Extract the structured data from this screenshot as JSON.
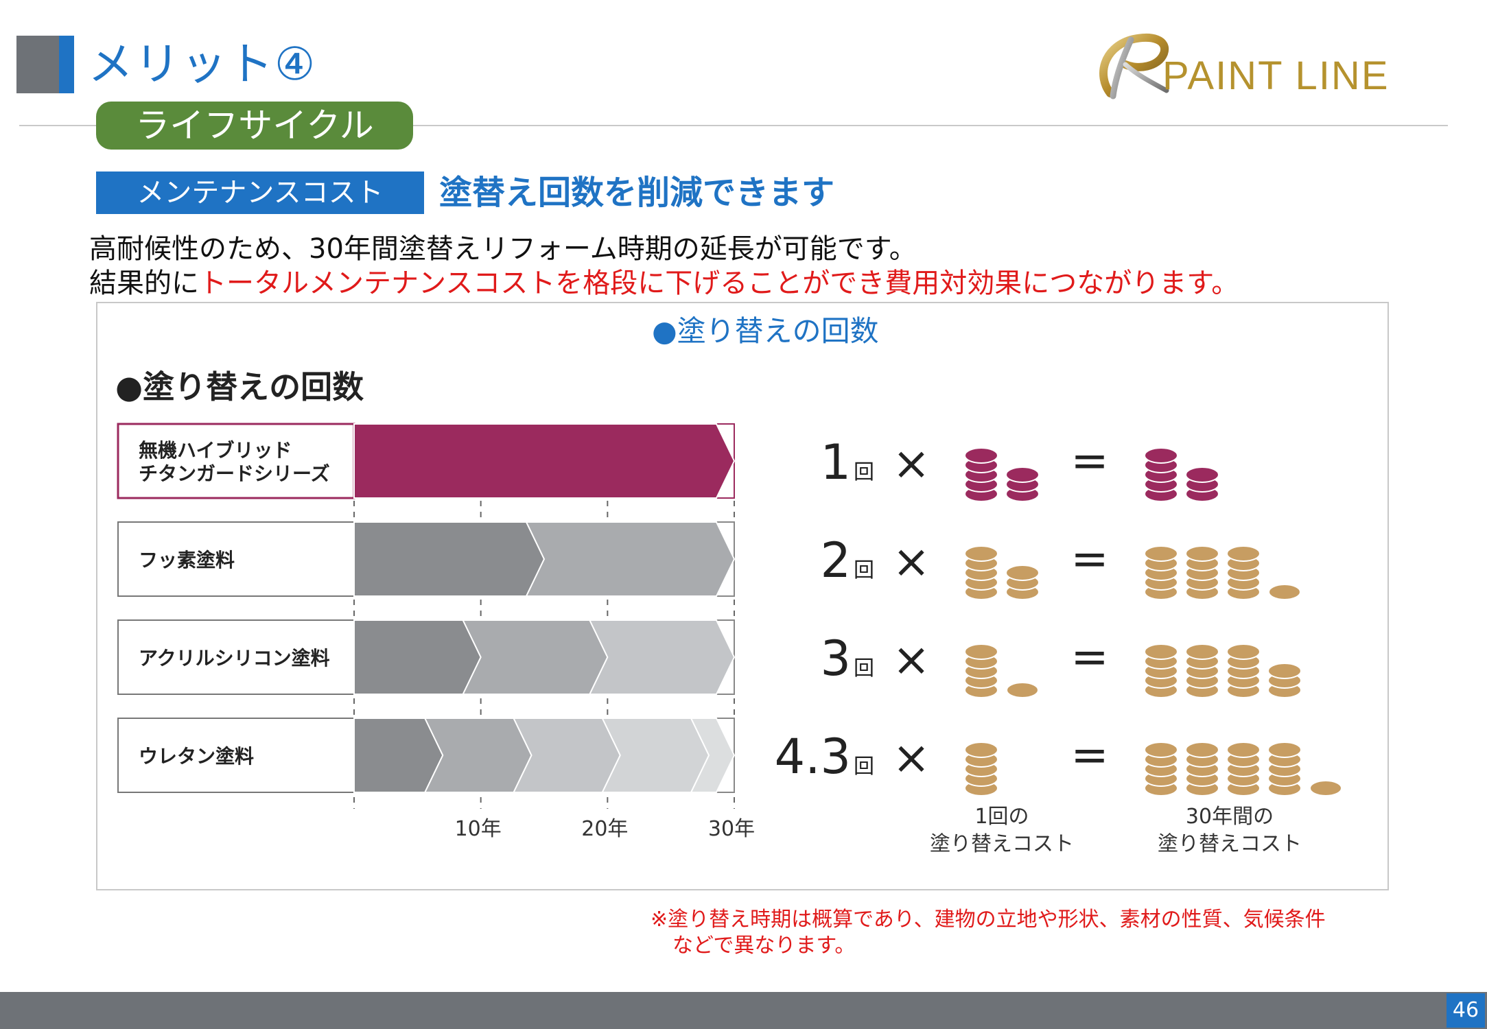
{
  "header": {
    "title": "メリット④",
    "section": "ライフサイクル",
    "logo_text": "PAINT LINE"
  },
  "subheader": {
    "tag": "メンテナンスコスト",
    "headline": "塗替え回数を削減できます"
  },
  "description": {
    "line1": "高耐候性のため、30年間塗替えリフォーム時期の延長が可能です。",
    "line2_prefix": "結果的に",
    "line2_highlight": "トータルメンテナンスコストを格段に下げることができ費用対効果につながります。"
  },
  "figure": {
    "caption": "●塗り替えの回数",
    "inner_title": "●塗り替えの回数"
  },
  "chart_data": {
    "type": "bar",
    "title": "●塗り替えの回数",
    "x_ticks": [
      "10年",
      "20年",
      "30年"
    ],
    "xlim": [
      0,
      30
    ],
    "unit_label": "回",
    "rows": [
      {
        "name_lines": [
          "無機ハイブリッド",
          "チタンガードシリーズ"
        ],
        "count": 1,
        "count_label": "1",
        "interval_years": 30,
        "single_cost_stacks": [
          5,
          3
        ],
        "total_cost_stacks": [
          5,
          3
        ],
        "color": "#9b2a5e"
      },
      {
        "name_lines": [
          "フッ素塗料"
        ],
        "count": 2,
        "count_label": "2",
        "interval_years": 15,
        "single_cost_stacks": [
          5,
          3
        ],
        "total_cost_stacks": [
          5,
          5,
          5,
          1
        ],
        "color": "#c79d62"
      },
      {
        "name_lines": [
          "アクリルシリコン塗料"
        ],
        "count": 3,
        "count_label": "3",
        "interval_years": 10,
        "single_cost_stacks": [
          5,
          1
        ],
        "total_cost_stacks": [
          5,
          5,
          5,
          3
        ],
        "color": "#c79d62"
      },
      {
        "name_lines": [
          "ウレタン塗料"
        ],
        "count": 4.3,
        "count_label": "4.3",
        "interval_years": 7,
        "single_cost_stacks": [
          5
        ],
        "total_cost_stacks": [
          5,
          5,
          5,
          5,
          1
        ],
        "color": "#c79d62"
      }
    ],
    "column_labels": {
      "single_cost": [
        "1回の",
        "塗り替えコスト"
      ],
      "total_cost": [
        "30年間の",
        "塗り替えコスト"
      ]
    },
    "operator_times": "×",
    "operator_equals": "="
  },
  "footnote": {
    "line1": "※塗り替え時期は概算であり、建物の立地や形状、素材の性質、気候条件",
    "line2": "などで異なります。"
  },
  "footer": {
    "page_number": "46"
  }
}
